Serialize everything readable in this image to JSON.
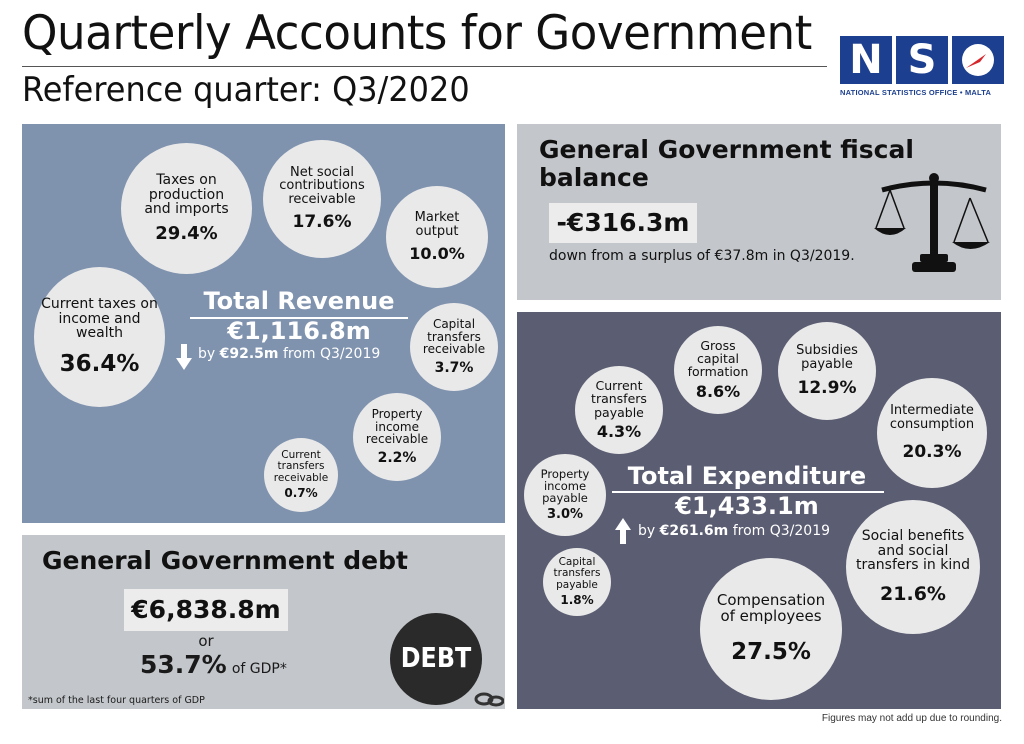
{
  "header": {
    "title": "Quarterly Accounts for Government",
    "subtitle": "Reference quarter: Q3/2020"
  },
  "logo": {
    "letters": [
      "N",
      "S",
      "O"
    ],
    "caption": "NATIONAL STATISTICS OFFICE • MALTA",
    "colors": {
      "blue": "#1d3f8f",
      "red": "#d7262b"
    }
  },
  "revenue": {
    "title": "Total Revenue",
    "amount": "€1,116.8m",
    "change_prefix": "by",
    "change": "€92.5m",
    "change_suffix": "from Q3/2019",
    "direction": "down",
    "items": [
      {
        "label": "Taxes on production and imports",
        "value": "29.4%"
      },
      {
        "label": "Net social contributions receivable",
        "value": "17.6%"
      },
      {
        "label": "Market output",
        "value": "10.0%"
      },
      {
        "label": "Current taxes on income and wealth",
        "value": "36.4%"
      },
      {
        "label": "Capital transfers receivable",
        "value": "3.7%"
      },
      {
        "label": "Property income receivable",
        "value": "2.2%"
      },
      {
        "label": "Current transfers receivable",
        "value": "0.7%"
      }
    ]
  },
  "fiscal": {
    "title": "General Government fiscal balance",
    "amount": "-€316.3m",
    "note": "down from a surplus of €37.8m in Q3/2019.",
    "icon": "balance-scale-icon"
  },
  "debt": {
    "title": "General Government debt",
    "amount": "€6,838.8m",
    "or": "or",
    "gdp_pct": "53.7%",
    "gdp_suffix": "of GDP*",
    "footnote": "*sum of the last four quarters of GDP",
    "ball_text": "DEBT",
    "icon": "debt-ball-icon"
  },
  "expenditure": {
    "title": "Total Expenditure",
    "amount": "€1,433.1m",
    "change_prefix": "by",
    "change": "€261.6m",
    "change_suffix": "from Q3/2019",
    "direction": "up",
    "items": [
      {
        "label": "Gross capital formation",
        "value": "8.6%"
      },
      {
        "label": "Subsidies payable",
        "value": "12.9%"
      },
      {
        "label": "Current transfers payable",
        "value": "4.3%"
      },
      {
        "label": "Intermediate consumption",
        "value": "20.3%"
      },
      {
        "label": "Property income payable",
        "value": "3.0%"
      },
      {
        "label": "Social benefits and social transfers in kind",
        "value": "21.6%"
      },
      {
        "label": "Capital transfers payable",
        "value": "1.8%"
      },
      {
        "label": "Compensation of employees",
        "value": "27.5%"
      }
    ]
  },
  "footer": {
    "note": "Figures may not add up due to rounding."
  }
}
